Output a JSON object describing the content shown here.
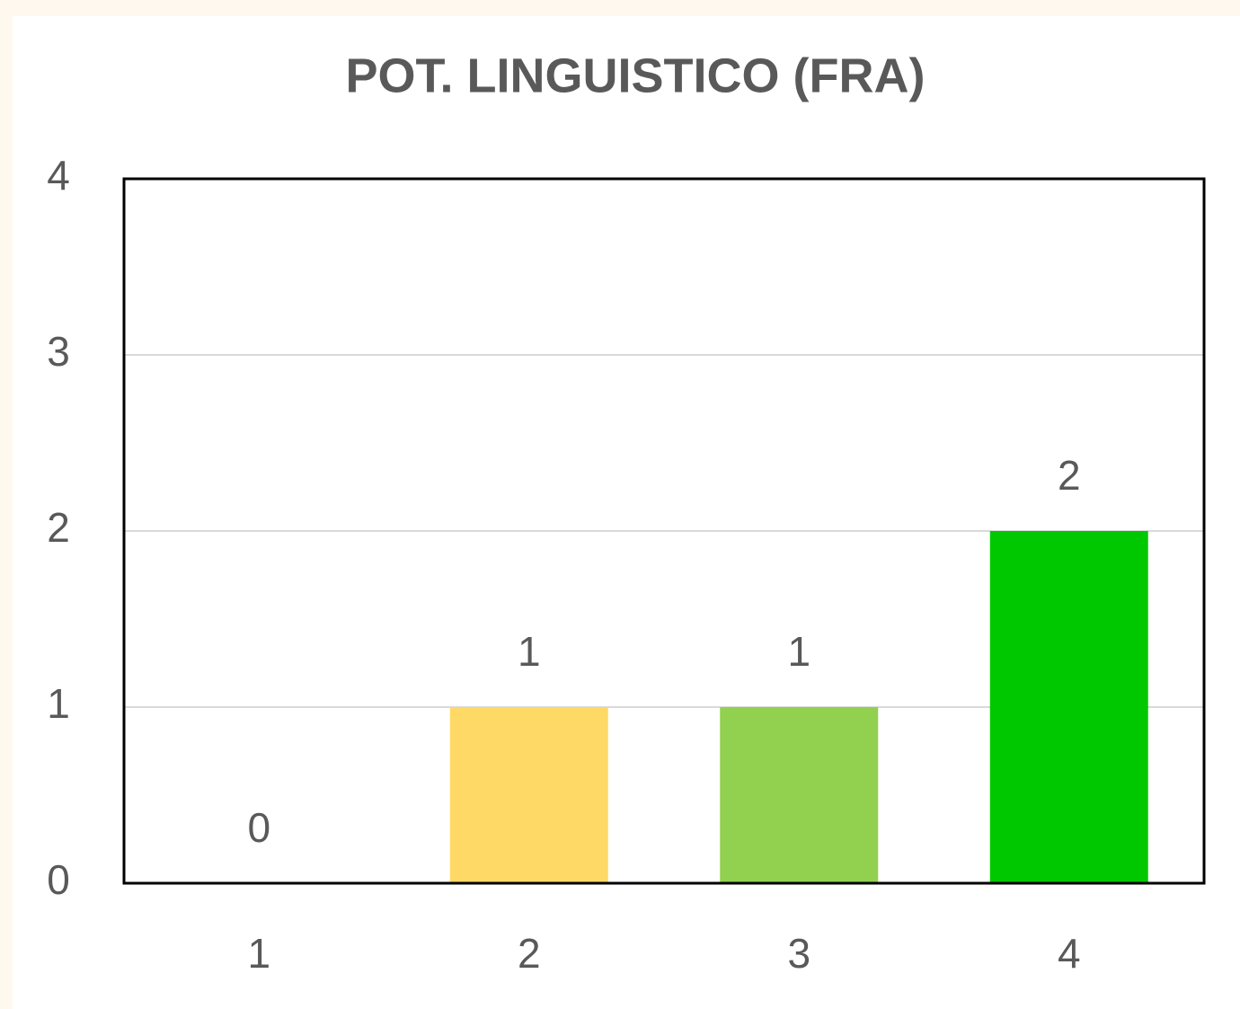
{
  "chart_data": {
    "type": "bar",
    "title": "POT. LINGUISTICO (FRA)",
    "categories": [
      "1",
      "2",
      "3",
      "4"
    ],
    "values": [
      0,
      1,
      1,
      2
    ],
    "colors": [
      null,
      "#ffd966",
      "#92d050",
      "#00c800"
    ],
    "ylim": [
      0,
      4
    ],
    "yticks": [
      0,
      1,
      2,
      3,
      4
    ],
    "grid": true,
    "data_labels": true
  }
}
